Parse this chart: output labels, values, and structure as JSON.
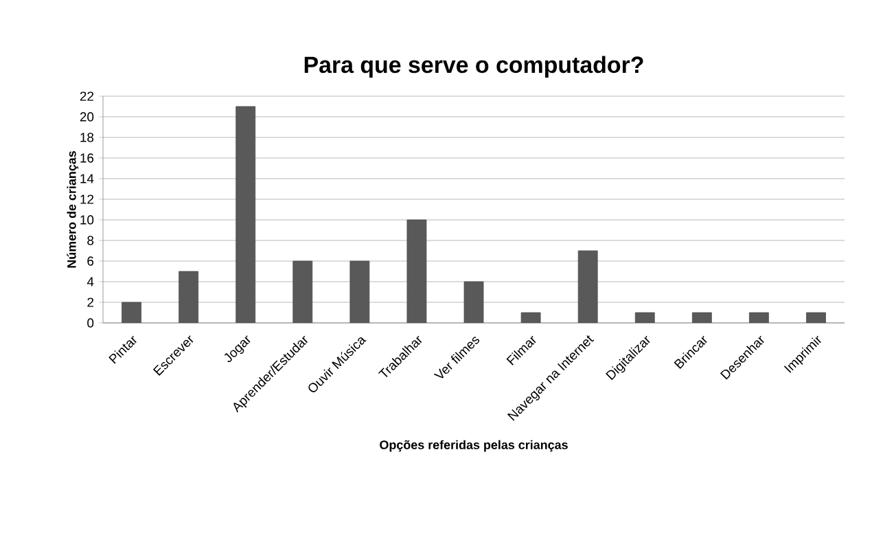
{
  "chart_data": {
    "type": "bar",
    "title": "Para que serve o computador?",
    "xlabel": "Opções referidas pelas crianças",
    "ylabel": "Número de crianças",
    "categories": [
      "Pintar",
      "Escrever",
      "Jogar",
      "Aprender/Estudar",
      "Ouvir Música",
      "Trabalhar",
      "Ver filmes",
      "Filmar",
      "Navegar na Internet",
      "Digitalizar",
      "Brincar",
      "Desenhar",
      "Imprimir"
    ],
    "values": [
      2,
      5,
      21,
      6,
      6,
      10,
      4,
      1,
      7,
      1,
      1,
      1,
      1
    ],
    "color": "#595959",
    "ylim": [
      0,
      22
    ],
    "yticks": [
      0,
      2,
      4,
      6,
      8,
      10,
      12,
      14,
      16,
      18,
      20,
      22
    ],
    "grid": "y"
  }
}
